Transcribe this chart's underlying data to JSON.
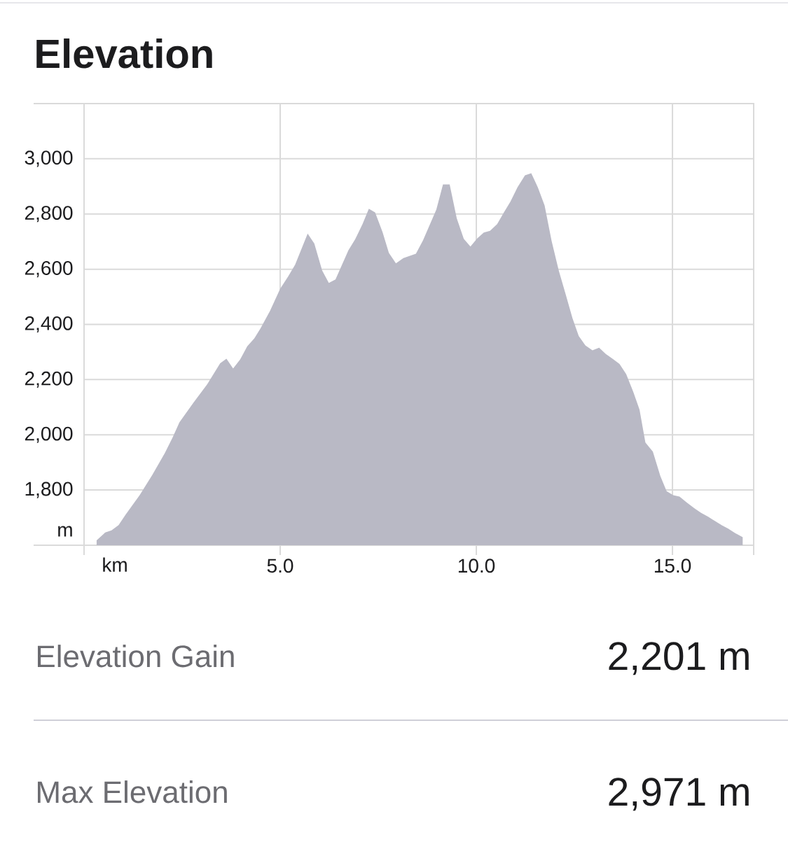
{
  "chart_data": {
    "type": "area",
    "title": "Elevation",
    "xlabel": "km",
    "ylabel": "m",
    "color": "#b9b9c5",
    "x": [
      0.32,
      0.54,
      0.7,
      0.88,
      1.06,
      1.42,
      1.74,
      2.06,
      2.26,
      2.43,
      2.78,
      3.14,
      3.47,
      3.63,
      3.8,
      3.98,
      4.16,
      4.34,
      4.5,
      4.74,
      5.0,
      5.2,
      5.38,
      5.7,
      5.87,
      6.07,
      6.24,
      6.41,
      6.74,
      6.91,
      7.1,
      7.26,
      7.42,
      7.61,
      7.77,
      7.95,
      8.14,
      8.46,
      8.64,
      8.98,
      9.15,
      9.32,
      9.5,
      9.68,
      9.85,
      10.02,
      10.19,
      10.35,
      10.53,
      10.7,
      10.87,
      11.05,
      11.24,
      11.4,
      11.57,
      11.74,
      11.92,
      12.1,
      12.28,
      12.45,
      12.61,
      12.78,
      12.96,
      13.13,
      13.3,
      13.49,
      13.65,
      13.82,
      14.0,
      14.16,
      14.31,
      14.5,
      14.69,
      14.85,
      15.02,
      15.18,
      15.36,
      15.56,
      15.73,
      15.91,
      16.08,
      16.26,
      16.42,
      16.6,
      16.79
    ],
    "values": [
      1618,
      1646,
      1654,
      1673,
      1711,
      1782,
      1855,
      1934,
      1991,
      2045,
      2115,
      2183,
      2259,
      2276,
      2240,
      2273,
      2321,
      2349,
      2386,
      2449,
      2529,
      2573,
      2616,
      2729,
      2693,
      2595,
      2550,
      2563,
      2669,
      2708,
      2764,
      2819,
      2806,
      2734,
      2659,
      2621,
      2640,
      2656,
      2704,
      2816,
      2907,
      2907,
      2785,
      2710,
      2682,
      2711,
      2733,
      2739,
      2763,
      2805,
      2845,
      2897,
      2940,
      2948,
      2896,
      2831,
      2702,
      2596,
      2508,
      2423,
      2358,
      2324,
      2306,
      2316,
      2293,
      2274,
      2257,
      2220,
      2156,
      2091,
      1972,
      1939,
      1851,
      1796,
      1781,
      1776,
      1755,
      1734,
      1717,
      1703,
      1688,
      1672,
      1660,
      1644,
      1629
    ],
    "xlim": [
      0,
      17.07
    ],
    "xticks": [
      {
        "value": 0,
        "label": null
      },
      {
        "value": 5,
        "label": "5.0"
      },
      {
        "value": 10,
        "label": "10.0"
      },
      {
        "value": 15,
        "label": "15.0"
      },
      {
        "value": 17.07,
        "label": null
      }
    ],
    "ylim": [
      1600,
      3200
    ],
    "yticks": [
      {
        "value": 1800,
        "label": "1,800"
      },
      {
        "value": 2000,
        "label": "2,000"
      },
      {
        "value": 2200,
        "label": "2,200"
      },
      {
        "value": 2400,
        "label": "2,400"
      },
      {
        "value": 2600,
        "label": "2,600"
      },
      {
        "value": 2800,
        "label": "2,800"
      },
      {
        "value": 3000,
        "label": "3,000"
      }
    ],
    "grid": true,
    "annotations": [
      "Elevation Gain",
      "2,201 m",
      "Max Elevation",
      "2,971 m"
    ]
  }
}
